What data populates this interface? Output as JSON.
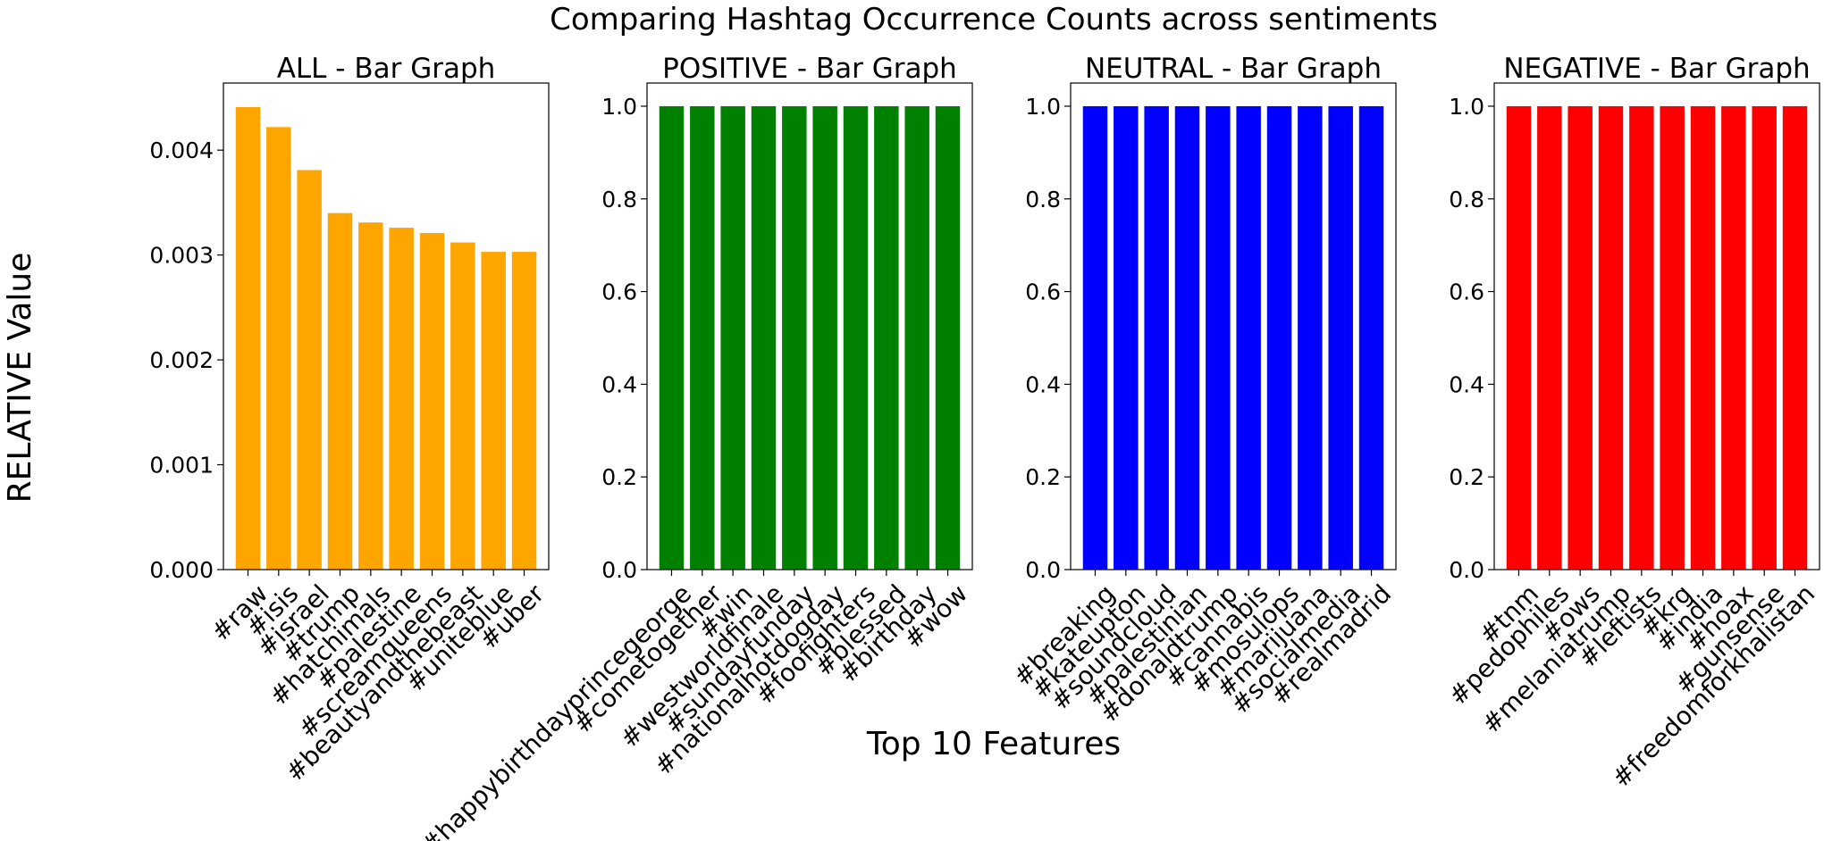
{
  "title": "Comparing Hashtag Occurrence Counts across sentiments",
  "xlabel": "Top 10 Features",
  "ylabel": "RELATIVE Value",
  "chart_data": [
    {
      "type": "bar",
      "title": "ALL - Bar Graph",
      "color": "#ffa500",
      "categories": [
        "#raw",
        "#isis",
        "#israel",
        "#trump",
        "#hatchimals",
        "#palestine",
        "#screamqueens",
        "#beautyandthebeast",
        "#uniteblue",
        "#uber"
      ],
      "values": [
        0.00441,
        0.00422,
        0.00381,
        0.0034,
        0.00331,
        0.00326,
        0.00321,
        0.00312,
        0.00303,
        0.00303
      ],
      "ylim": [
        0,
        0.00464
      ],
      "yticks": [
        0,
        0.001,
        0.002,
        0.003,
        0.004
      ],
      "ytick_labels": [
        "0.000",
        "0.001",
        "0.002",
        "0.003",
        "0.004"
      ]
    },
    {
      "type": "bar",
      "title": "POSITIVE - Bar Graph",
      "color": "#008000",
      "categories": [
        "#happybirthdayprincegeorge",
        "#cometogether",
        "#win",
        "#westworldfinale",
        "#sundayfunday",
        "#nationalhotdogday",
        "#foofighters",
        "#blessed",
        "#birthday",
        "#wow"
      ],
      "values": [
        1,
        1,
        1,
        1,
        1,
        1,
        1,
        1,
        1,
        1
      ],
      "ylim": [
        0,
        1.05
      ],
      "yticks": [
        0,
        0.2,
        0.4,
        0.6,
        0.8,
        1.0
      ],
      "ytick_labels": [
        "0.0",
        "0.2",
        "0.4",
        "0.6",
        "0.8",
        "1.0"
      ]
    },
    {
      "type": "bar",
      "title": "NEUTRAL - Bar Graph",
      "color": "#0000ff",
      "categories": [
        "#breaking",
        "#kateupton",
        "#soundcloud",
        "#palestinian",
        "#donaldtrump",
        "#cannabis",
        "#mosulops",
        "#marijuana",
        "#socialmedia",
        "#realmadrid"
      ],
      "values": [
        1,
        1,
        1,
        1,
        1,
        1,
        1,
        1,
        1,
        1
      ],
      "ylim": [
        0,
        1.05
      ],
      "yticks": [
        0,
        0.2,
        0.4,
        0.6,
        0.8,
        1.0
      ],
      "ytick_labels": [
        "0.0",
        "0.2",
        "0.4",
        "0.6",
        "0.8",
        "1.0"
      ]
    },
    {
      "type": "bar",
      "title": "NEGATIVE - Bar Graph",
      "color": "#ff0000",
      "categories": [
        "#tnm",
        "#pedophiles",
        "#ows",
        "#melaniatrump",
        "#leftists",
        "#krg",
        "#india",
        "#hoax",
        "#gunsense",
        "#freedomforkhalistan"
      ],
      "values": [
        1,
        1,
        1,
        1,
        1,
        1,
        1,
        1,
        1,
        1
      ],
      "ylim": [
        0,
        1.05
      ],
      "yticks": [
        0,
        0.2,
        0.4,
        0.6,
        0.8,
        1.0
      ],
      "ytick_labels": [
        "0.0",
        "0.2",
        "0.4",
        "0.6",
        "0.8",
        "1.0"
      ]
    }
  ]
}
